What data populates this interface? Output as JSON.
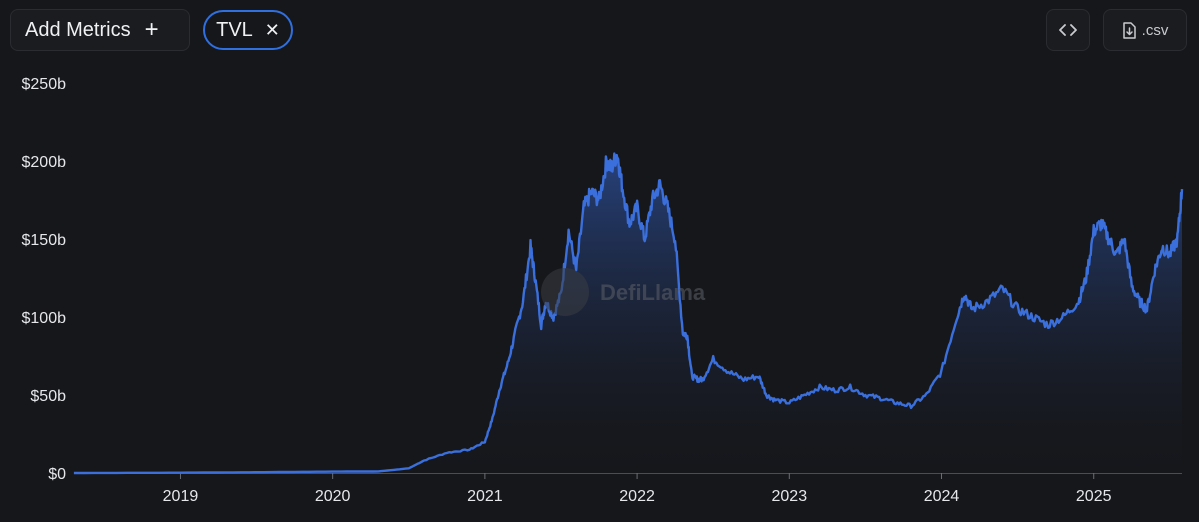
{
  "toolbar": {
    "add_metrics_label": "Add Metrics",
    "add_icon": "plus-icon",
    "chip_label": "TVL",
    "chip_close_icon": "close-icon",
    "embed_icon": "code-icon",
    "csv_label": ".csv",
    "csv_icon": "download-file-icon"
  },
  "watermark": "DefiLlama",
  "colors": {
    "line": "#3a6fdc",
    "area_top": "#2a4a8f",
    "background": "#16171b",
    "accent": "#2f6fe0"
  },
  "chart_data": {
    "type": "area",
    "series": [
      {
        "x": [
          2018.3,
          2019.0,
          2019.5,
          2020.0,
          2020.3,
          2020.5,
          2020.6,
          2020.75,
          2020.9,
          2021.0,
          2021.05,
          2021.1,
          2021.15,
          2021.2,
          2021.25,
          2021.3,
          2021.33,
          2021.37,
          2021.4,
          2021.45,
          2021.5,
          2021.55,
          2021.6,
          2021.65,
          2021.7,
          2021.75,
          2021.8,
          2021.83,
          2021.87,
          2021.9,
          2021.95,
          2022.0,
          2022.05,
          2022.1,
          2022.15,
          2022.2,
          2022.25,
          2022.3,
          2022.33,
          2022.36,
          2022.4,
          2022.43,
          2022.5,
          2022.6,
          2022.7,
          2022.8,
          2022.85,
          2022.9,
          2023.0,
          2023.1,
          2023.2,
          2023.3,
          2023.4,
          2023.5,
          2023.6,
          2023.7,
          2023.8,
          2023.9,
          2024.0,
          2024.1,
          2024.15,
          2024.2,
          2024.3,
          2024.4,
          2024.5,
          2024.6,
          2024.7,
          2024.8,
          2024.9,
          2024.95,
          2025.0,
          2025.05,
          2025.1,
          2025.15,
          2025.2,
          2025.25,
          2025.3,
          2025.35,
          2025.4,
          2025.45,
          2025.5,
          2025.55,
          2025.58
        ],
        "y": [
          0,
          0.2,
          0.5,
          0.9,
          1,
          3,
          8,
          13,
          15,
          20,
          35,
          55,
          70,
          90,
          110,
          145,
          125,
          95,
          110,
          100,
          115,
          155,
          130,
          170,
          180,
          175,
          200,
          195,
          205,
          185,
          160,
          170,
          150,
          175,
          185,
          170,
          150,
          90,
          88,
          62,
          60,
          60,
          73,
          65,
          60,
          62,
          50,
          47,
          45,
          50,
          55,
          53,
          55,
          50,
          48,
          45,
          43,
          50,
          65,
          100,
          115,
          105,
          110,
          118,
          105,
          100,
          95,
          100,
          110,
          125,
          155,
          160,
          150,
          140,
          150,
          120,
          110,
          105,
          130,
          145,
          140,
          150,
          182
        ]
      }
    ],
    "x_ticks": [
      "2019",
      "2020",
      "2021",
      "2022",
      "2023",
      "2024",
      "2025"
    ],
    "y_ticks": [
      "$0",
      "$50b",
      "$100b",
      "$150b",
      "$200b",
      "$250b"
    ],
    "xlim": [
      2018.34,
      2025.58
    ],
    "ylim": [
      0,
      250
    ],
    "grid": false,
    "legend": "none"
  }
}
